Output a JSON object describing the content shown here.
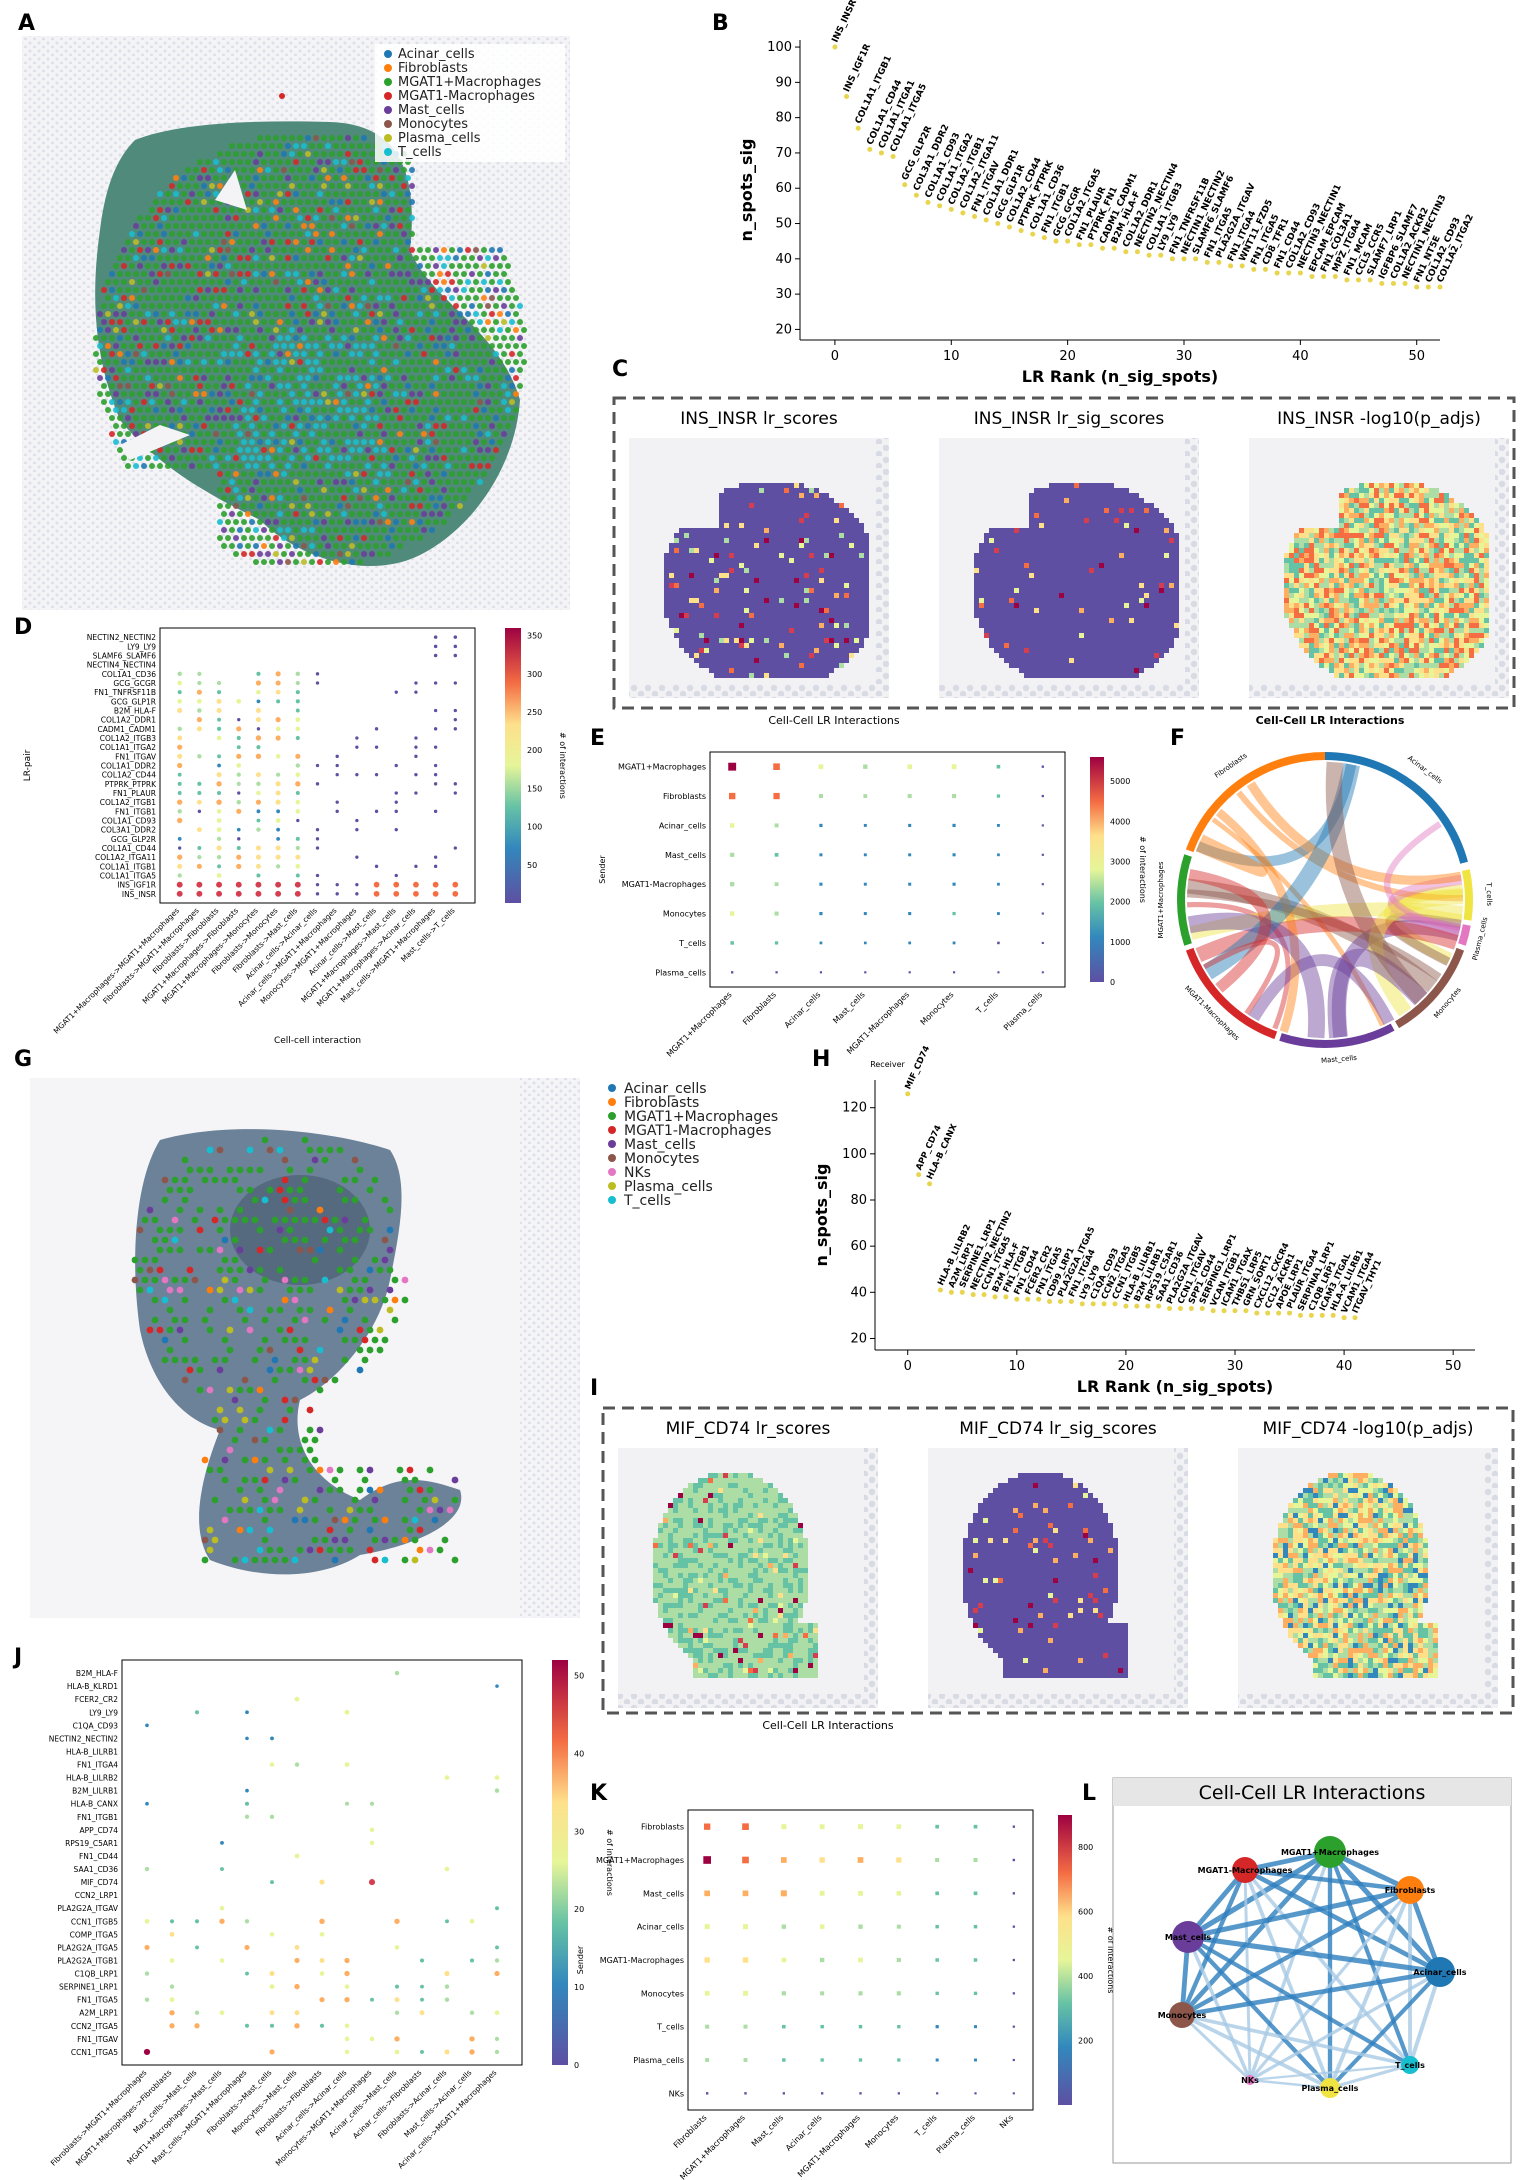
{
  "panel_letters": [
    "A",
    "B",
    "C",
    "D",
    "E",
    "F",
    "G",
    "H",
    "I",
    "J",
    "K",
    "L"
  ],
  "cell_colors": {
    "Acinar_cells": "#1f77b4",
    "Fibroblasts": "#ff7f0e",
    "MGAT1+Macrophages": "#2ca02c",
    "MGAT1-Macrophages": "#d62728",
    "Mast_cells": "#6a3d9a",
    "Monocytes": "#8c564b",
    "NKs": "#e377c2",
    "Plasma_cells": "#bcbd22",
    "T_cells": "#17becf"
  },
  "legend_A": [
    "Acinar_cells",
    "Fibroblasts",
    "MGAT1+Macrophages",
    "MGAT1-Macrophages",
    "Mast_cells",
    "Monocytes",
    "Plasma_cells",
    "T_cells"
  ],
  "legend_G": [
    "Acinar_cells",
    "Fibroblasts",
    "MGAT1+Macrophages",
    "MGAT1-Macrophages",
    "Mast_cells",
    "Monocytes",
    "NKs",
    "Plasma_cells",
    "T_cells"
  ],
  "chart_data": [
    {
      "panel": "B",
      "type": "scatter",
      "xlabel": "LR Rank (n_sig_spots)",
      "ylabel": "n_spots_sig",
      "xlim": [
        -3,
        52
      ],
      "ylim": [
        17,
        102
      ],
      "xticks": [
        0,
        10,
        20,
        30,
        40,
        50
      ],
      "yticks": [
        20,
        30,
        40,
        50,
        60,
        70,
        80,
        90,
        100
      ],
      "labels": [
        "INS_INSR",
        "INS_IGF1R",
        "COL1A1_ITGB1",
        "COL1A1_CD44",
        "COL1A1_ITGA1",
        "COL1A1_ITGA5",
        "GCG_GLP2R",
        "COL3A1_DDR2",
        "COL1A1_CD93",
        "COL1A1_ITGA2",
        "COL1A2_ITGB1",
        "COL1A2_ITGA11",
        "FN1_ITGAV",
        "COL1A1_DDR1",
        "GCG_GLP1R",
        "COL1A2_CD44",
        "PTPRK_PTPRK",
        "COL1A1_CD36",
        "FN1_ITGB1",
        "GCG_GCGR",
        "COL1A2_ITGA5",
        "FN1_PLAUR",
        "PTPRK_FN1",
        "CADM1_CADM1",
        "B2M_HLA-F",
        "COL1A2_DDR1",
        "NECTIN2_NECTIN4",
        "COL1A1_ITGB3",
        "LY9_LY9",
        "FN1_TNFRSF11B",
        "NECTIN1_NECTIN2",
        "SLAMF6_SLAMF6",
        "FN1_ITGA5",
        "PLA2G2A_ITGAV",
        "FN1_ITGA4",
        "WNT11_FZD5",
        "FN1_ITGA5",
        "CD8_TFR1",
        "FN1_CD44",
        "COL1A2_CD93",
        "NECTIN3_NECTIN1",
        "EPCAM_EPCAM",
        "FN1_COL3A1",
        "MPZ_ITGA4",
        "FN1_MCAM",
        "CCL5_CCR5",
        "SLAMF7_LRP1",
        "IGFBP6_SLAMF7",
        "COL1A2_ACKR2",
        "NECTIN1_NECTIN3",
        "FN1_NT5E",
        "COL1A2_CD93",
        "COL1A2_ITGA2"
      ],
      "y": [
        100,
        86,
        77,
        71,
        70,
        69,
        61,
        58,
        56,
        55,
        54,
        53,
        52,
        51,
        50,
        49,
        48,
        47,
        46,
        45,
        45,
        44,
        44,
        43,
        43,
        42,
        42,
        41,
        41,
        40,
        40,
        40,
        39,
        39,
        38,
        38,
        37,
        37,
        36,
        36,
        36,
        35,
        35,
        35,
        34,
        34,
        34,
        33,
        33,
        33,
        32,
        32,
        32
      ]
    },
    {
      "panel": "D",
      "type": "scatter",
      "xlabel": "Cell-cell interaction",
      "ylabel": "LR-pair",
      "colorbar_label": "# of interactions",
      "colorbar_range": [
        0,
        360
      ],
      "colorbar_ticks": [
        50,
        100,
        150,
        200,
        250,
        300,
        350
      ],
      "lr_pairs": [
        "NECTIN2_NECTIN2",
        "LY9_LY9",
        "SLAMF6_SLAMF6",
        "NECTIN4_NECTIN4",
        "COL1A1_CD36",
        "GCG_GCGR",
        "FN1_TNFRSF11B",
        "GCG_GLP1R",
        "B2M_HLA-F",
        "COL1A2_DDR1",
        "CADM1_CADM1",
        "COL1A2_ITGB3",
        "COL1A1_ITGA2",
        "FN1_ITGAV",
        "COL1A1_DDR2",
        "COL1A2_CD44",
        "PTPRK_PTPRK",
        "FN1_PLAUR",
        "COL1A2_ITGB1",
        "FN1_ITGB1",
        "COL1A1_CD93",
        "COL3A1_DDR2",
        "GCG_GLP2R",
        "COL1A1_CD44",
        "COL1A2_ITGA11",
        "COL1A1_ITGB1",
        "COL1A1_ITGA5",
        "INS_IGF1R",
        "INS_INSR"
      ],
      "interactions": [
        "MGAT1+Macrophages->MGAT1+Macrophages",
        "Fibroblasts->MGAT1+Macrophages",
        "Fibroblasts->Fibroblasts",
        "MGAT1+Macrophages->Fibroblasts",
        "MGAT1+Macrophages->Monocytes",
        "Fibroblasts->Monocytes",
        "Fibroblasts->Mast_cells",
        "Acinar_cells->Acinar_cells",
        "Acinar_cells->MGAT1+Macrophages",
        "Monocytes->MGAT1+Macrophages",
        "Acinar_cells->Mast_cells",
        "MGAT1+Macrophages->Mast_cells",
        "MGAT1+Macrophages->Acinar_cells",
        "Mast_cells->MGAT1+Macrophages",
        "Mast_cells->T_cells"
      ]
    },
    {
      "panel": "E",
      "type": "scatter",
      "xlabel": "Receiver",
      "ylabel": "Sender",
      "colorbar_label": "# of interactions",
      "colorbar_range": [
        0,
        5600
      ],
      "colorbar_ticks": [
        0,
        1000,
        2000,
        3000,
        4000,
        5000
      ],
      "senders": [
        "MGAT1+Macrophages",
        "Fibroblasts",
        "Acinar_cells",
        "Mast_cells",
        "MGAT1-Macrophages",
        "Monocytes",
        "T_cells",
        "Plasma_cells"
      ],
      "receivers": [
        "MGAT1+Macrophages",
        "Fibroblasts",
        "Acinar_cells",
        "Mast_cells",
        "MGAT1-Macrophages",
        "Monocytes",
        "T_cells",
        "Plasma_cells"
      ],
      "values": [
        [
          5500,
          4300,
          2500,
          2200,
          2400,
          2600,
          1500,
          300
        ],
        [
          4100,
          4000,
          1900,
          1700,
          1900,
          2000,
          1200,
          250
        ],
        [
          2300,
          1800,
          1100,
          900,
          1000,
          1100,
          800,
          150
        ],
        [
          2000,
          1600,
          950,
          850,
          900,
          1000,
          700,
          150
        ],
        [
          2100,
          1700,
          1000,
          900,
          950,
          1050,
          750,
          150
        ],
        [
          2300,
          1900,
          1100,
          950,
          1000,
          1150,
          800,
          150
        ],
        [
          1400,
          1200,
          700,
          650,
          700,
          750,
          500,
          100
        ],
        [
          300,
          250,
          150,
          150,
          150,
          150,
          100,
          50
        ]
      ]
    },
    {
      "panel": "F",
      "type": "chord",
      "title": "Cell-Cell LR Interactions",
      "groups": [
        "Fibroblasts",
        "Acinar_cells",
        "T_cells",
        "Plasma_cells",
        "Monocytes",
        "Mast_cells",
        "MGAT1-Macrophages",
        "MGAT1+Macrophages"
      ]
    },
    {
      "panel": "H",
      "type": "scatter",
      "xlabel": "LR Rank (n_sig_spots)",
      "ylabel": "n_spots_sig",
      "xlim": [
        -3,
        52
      ],
      "ylim": [
        15,
        132
      ],
      "xticks": [
        0,
        10,
        20,
        30,
        40,
        50
      ],
      "yticks": [
        20,
        40,
        60,
        80,
        100,
        120
      ],
      "labels": [
        "MIF_CD74",
        "APP_CD74",
        "HLA-B_CANX",
        "HLA-B_LILRB2",
        "A2M_LRP1",
        "SERPINE1_LRP1",
        "NECTIN2_NECTIN2",
        "CCN1_ITGA5",
        "B2M_HLA-F",
        "FN1_ITGB1",
        "FN1_CD44",
        "FCER2_CR2",
        "FN1_ITGA5",
        "CD99_LRP1",
        "PLA2G2A_ITGA5",
        "FN1_ITGA4",
        "LY9_LY9",
        "C1QA_CD93",
        "CCN2_ITGA5",
        "CCN1_ITGB5",
        "HLA-B_LILRB1",
        "B2M_LILRB1",
        "RPS19_C5AR1",
        "SAA1_CD36",
        "PLA2G2A_ITGAV",
        "CCN1_ITGAV",
        "SPP1_CD44",
        "SERPING1_LRP1",
        "VCAN_ITGB1",
        "ICAM1_ITGAX",
        "THBS1_LRP5",
        "GRN_SORT1",
        "CXCL12_CXCR4",
        "CCL2_ACKR1",
        "APOE_LRP1",
        "PLAUR_ITGA4",
        "SERPINA1_LRP1",
        "C1QB_LRP1",
        "ICAM3_ITGAL",
        "HLA-A_LILRB1",
        "VCAM1_ITGA4",
        "ITGAV_THY1"
      ],
      "y": [
        126,
        91,
        87,
        41,
        40,
        40,
        39,
        39,
        38,
        38,
        37,
        37,
        37,
        36,
        36,
        36,
        35,
        35,
        35,
        35,
        34,
        34,
        34,
        34,
        33,
        33,
        33,
        33,
        32,
        32,
        32,
        32,
        31,
        31,
        31,
        31,
        30,
        30,
        30,
        30,
        29,
        29
      ]
    },
    {
      "panel": "J",
      "type": "scatter",
      "xlabel": "Cell-cell interaction",
      "ylabel": "LR-pair",
      "colorbar_label": "# of interactions",
      "colorbar_range": [
        0,
        52
      ],
      "colorbar_ticks": [
        0,
        10,
        20,
        30,
        40,
        50
      ],
      "lr_pairs": [
        "B2M_HLA-F",
        "HLA-B_KLRD1",
        "FCER2_CR2",
        "LY9_LY9",
        "C1QA_CD93",
        "NECTIN2_NECTIN2",
        "HLA-B_LILRB1",
        "FN1_ITGA4",
        "HLA-B_LILRB2",
        "B2M_LILRB1",
        "HLA-B_CANX",
        "FN1_ITGB1",
        "APP_CD74",
        "RPS19_C5AR1",
        "FN1_CD44",
        "SAA1_CD36",
        "MIF_CD74",
        "CCN2_LRP1",
        "PLA2G2A_ITGAV",
        "CCN1_ITGB5",
        "COMP_ITGA5",
        "PLA2G2A_ITGA5",
        "PLA2G2A_ITGB1",
        "C1QB_LRP1",
        "SERPINE1_LRP1",
        "FN1_ITGA5",
        "A2M_LRP1",
        "CCN2_ITGA5",
        "FN1_ITGAV",
        "CCN1_ITGA5"
      ],
      "interactions": [
        "Fibroblasts->MGAT1+Macrophages",
        "MGAT1+Macrophages->Fibroblasts",
        "Mast_cells->Mast_cells",
        "MGAT1+Macrophages->Mast_cells",
        "Mast_cells->MGAT1+Macrophages",
        "Fibroblasts->Mast_cells",
        "Monocytes->Mast_cells",
        "Fibroblasts->Fibroblasts",
        "Acinar_cells->Acinar_cells",
        "Monocytes->MGAT1+Macrophages",
        "Acinar_cells->Mast_cells",
        "Acinar_cells->Fibroblasts",
        "Fibroblasts->Acinar_cells",
        "Mast_cells->Acinar_cells",
        "Acinar_cells->MGAT1+Macrophages"
      ]
    },
    {
      "panel": "K",
      "type": "scatter",
      "xlabel": "Receiver",
      "ylabel": "Sender",
      "colorbar_label": "# of interactions",
      "colorbar_range": [
        0,
        900
      ],
      "colorbar_ticks": [
        200,
        400,
        600,
        800
      ],
      "senders": [
        "Fibroblasts",
        "MGAT1+Macrophages",
        "Mast_cells",
        "Acinar_cells",
        "MGAT1-Macrophages",
        "Monocytes",
        "T_cells",
        "Plasma_cells",
        "NKs"
      ],
      "receivers": [
        "Fibroblasts",
        "MGAT1+Macrophages",
        "Mast_cells",
        "Acinar_cells",
        "MGAT1-Macrophages",
        "Monocytes",
        "T_cells",
        "Plasma_cells",
        "NKs"
      ],
      "values": [
        [
          650,
          700,
          450,
          420,
          450,
          400,
          250,
          250,
          50
        ],
        [
          850,
          700,
          550,
          500,
          550,
          480,
          300,
          300,
          60
        ],
        [
          550,
          550,
          600,
          420,
          420,
          380,
          250,
          250,
          50
        ],
        [
          450,
          450,
          350,
          380,
          350,
          300,
          220,
          220,
          40
        ],
        [
          500,
          520,
          380,
          350,
          400,
          330,
          220,
          220,
          40
        ],
        [
          400,
          420,
          330,
          300,
          320,
          320,
          200,
          200,
          40
        ],
        [
          300,
          300,
          230,
          220,
          220,
          200,
          180,
          150,
          30
        ],
        [
          280,
          280,
          220,
          200,
          200,
          190,
          150,
          140,
          30
        ],
        [
          60,
          60,
          50,
          50,
          50,
          40,
          30,
          30,
          20
        ]
      ]
    },
    {
      "panel": "L",
      "type": "network",
      "title": "Cell-Cell LR Interactions",
      "nodes": [
        "MGAT1+Macrophages",
        "MGAT1-Macrophages",
        "Fibroblasts",
        "Mast_cells",
        "Acinar_cells",
        "Monocytes",
        "T_cells",
        "NKs",
        "Plasma_cells"
      ]
    }
  ],
  "spatial": {
    "C": {
      "titles": [
        "INS_INSR lr_scores",
        "INS_INSR lr_sig_scores",
        "INS_INSR -log10(p_adjs)"
      ],
      "caption": "Cell-Cell LR Interactions"
    },
    "I": {
      "titles": [
        "MIF_CD74 lr_scores",
        "MIF_CD74 lr_sig_scores",
        "MIF_CD74 -log10(p_adjs)"
      ],
      "caption": "Cell-Cell LR Interactions"
    }
  }
}
